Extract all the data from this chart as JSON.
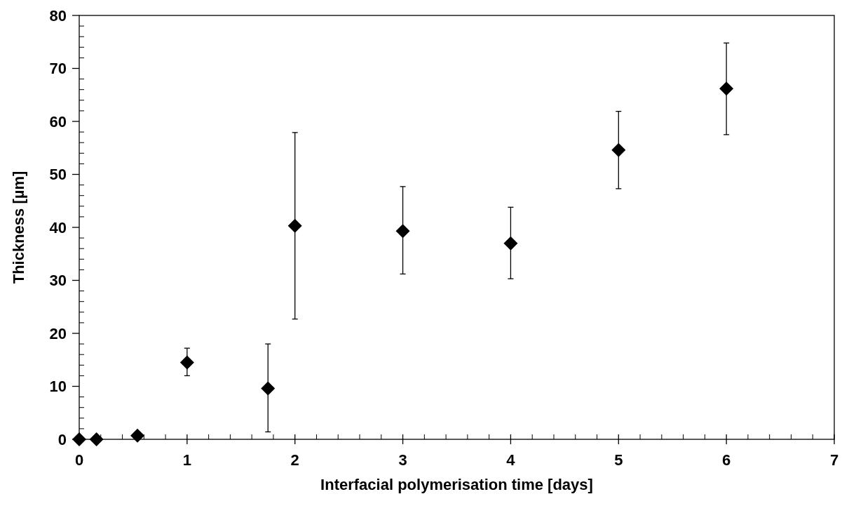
{
  "chart_data": {
    "type": "scatter",
    "xlabel": "Interfacial polymerisation time [days]",
    "ylabel": "Thickness [µm]",
    "x": [
      0,
      0.16,
      0.54,
      1,
      1.75,
      2,
      3,
      4,
      5,
      6
    ],
    "series": [
      {
        "color": "#000000",
        "values": [
          0,
          0,
          0.7,
          14.5,
          9.6,
          40.3,
          39.3,
          37.0,
          54.6,
          66.2
        ],
        "errors": [
          null,
          null,
          null,
          [
            12.0,
            17.2
          ],
          [
            1.4,
            18.0
          ],
          [
            22.7,
            57.9
          ],
          [
            31.2,
            47.7
          ],
          [
            30.3,
            43.8
          ],
          [
            47.3,
            61.9
          ],
          [
            57.5,
            74.8
          ]
        ]
      }
    ],
    "marker": "diamond",
    "grid": false,
    "xlim": [
      0,
      7
    ],
    "xticks": [
      0,
      {
        "value": 0.2,
        "label": null
      },
      {
        "value": 0.4,
        "label": null
      },
      {
        "value": 0.6,
        "label": null
      },
      {
        "value": 0.8,
        "label": null
      },
      1,
      {
        "value": 1.2,
        "label": null
      },
      {
        "value": 1.4,
        "label": null
      },
      {
        "value": 1.6,
        "label": null
      },
      {
        "value": 1.8,
        "label": null
      },
      2,
      {
        "value": 2.2,
        "label": null
      },
      {
        "value": 2.4,
        "label": null
      },
      {
        "value": 2.6,
        "label": null
      },
      {
        "value": 2.8,
        "label": null
      },
      3,
      {
        "value": 3.2,
        "label": null
      },
      {
        "value": 3.4,
        "label": null
      },
      {
        "value": 3.6,
        "label": null
      },
      {
        "value": 3.8,
        "label": null
      },
      4,
      {
        "value": 4.2,
        "label": null
      },
      {
        "value": 4.4,
        "label": null
      },
      {
        "value": 4.6,
        "label": null
      },
      {
        "value": 4.8,
        "label": null
      },
      5,
      {
        "value": 5.2,
        "label": null
      },
      {
        "value": 5.4,
        "label": null
      },
      {
        "value": 5.6,
        "label": null
      },
      {
        "value": 5.8,
        "label": null
      },
      6,
      {
        "value": 6.2,
        "label": null
      },
      {
        "value": 6.4,
        "label": null
      },
      {
        "value": 6.6,
        "label": null
      },
      {
        "value": 6.8,
        "label": null
      },
      7
    ],
    "ylim": [
      0,
      80
    ],
    "yticks": [
      0,
      {
        "value": 2,
        "label": null
      },
      {
        "value": 4,
        "label": null
      },
      {
        "value": 6,
        "label": null
      },
      {
        "value": 8,
        "label": null
      },
      10,
      {
        "value": 12,
        "label": null
      },
      {
        "value": 14,
        "label": null
      },
      {
        "value": 16,
        "label": null
      },
      {
        "value": 18,
        "label": null
      },
      20,
      {
        "value": 22,
        "label": null
      },
      {
        "value": 24,
        "label": null
      },
      {
        "value": 26,
        "label": null
      },
      {
        "value": 28,
        "label": null
      },
      30,
      {
        "value": 32,
        "label": null
      },
      {
        "value": 34,
        "label": null
      },
      {
        "value": 36,
        "label": null
      },
      {
        "value": 38,
        "label": null
      },
      40,
      {
        "value": 42,
        "label": null
      },
      {
        "value": 44,
        "label": null
      },
      {
        "value": 46,
        "label": null
      },
      {
        "value": 48,
        "label": null
      },
      50,
      {
        "value": 52,
        "label": null
      },
      {
        "value": 54,
        "label": null
      },
      {
        "value": 56,
        "label": null
      },
      {
        "value": 58,
        "label": null
      },
      60,
      {
        "value": 62,
        "label": null
      },
      {
        "value": 64,
        "label": null
      },
      {
        "value": 66,
        "label": null
      },
      {
        "value": 68,
        "label": null
      },
      70,
      {
        "value": 72,
        "label": null
      },
      {
        "value": 74,
        "label": null
      },
      {
        "value": 76,
        "label": null
      },
      {
        "value": 78,
        "label": null
      },
      80
    ]
  }
}
